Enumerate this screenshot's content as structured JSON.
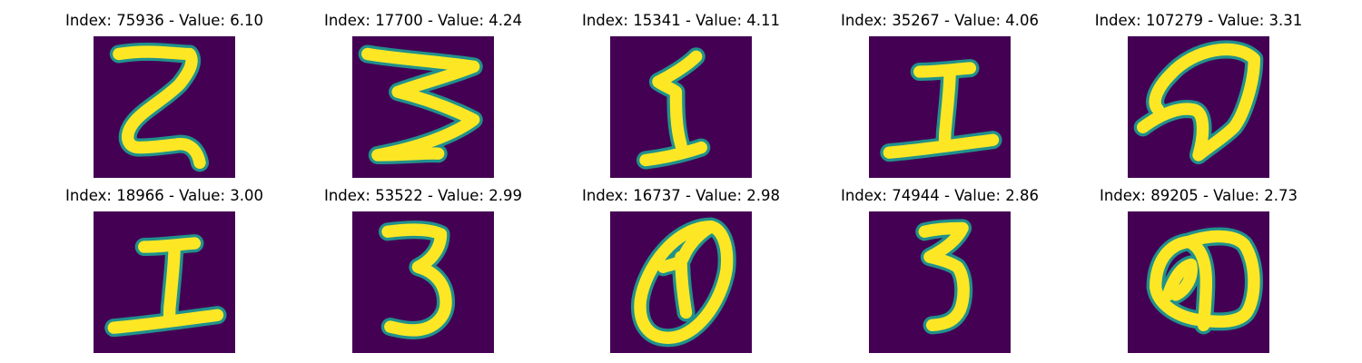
{
  "figure": {
    "colors": {
      "background": "#440154",
      "edge": "#21918c",
      "stroke": "#fde725"
    },
    "panels": [
      {
        "index": "75936",
        "value": "6.10",
        "glyph": "digit-2-z"
      },
      {
        "index": "17700",
        "value": "4.24",
        "glyph": "digit-3-wide"
      },
      {
        "index": "15341",
        "value": "4.11",
        "glyph": "digit-1-serif"
      },
      {
        "index": "35267",
        "value": "4.06",
        "glyph": "digit-1-i-shape"
      },
      {
        "index": "107279",
        "value": "3.31",
        "glyph": "digit-loop-scribble"
      },
      {
        "index": "18966",
        "value": "3.00",
        "glyph": "digit-1-i-shape"
      },
      {
        "index": "53522",
        "value": "2.99",
        "glyph": "digit-3"
      },
      {
        "index": "16737",
        "value": "2.98",
        "glyph": "digit-0-slashed"
      },
      {
        "index": "74944",
        "value": "2.86",
        "glyph": "digit-3-narrow"
      },
      {
        "index": "89205",
        "value": "2.73",
        "glyph": "digit-loops"
      }
    ]
  }
}
